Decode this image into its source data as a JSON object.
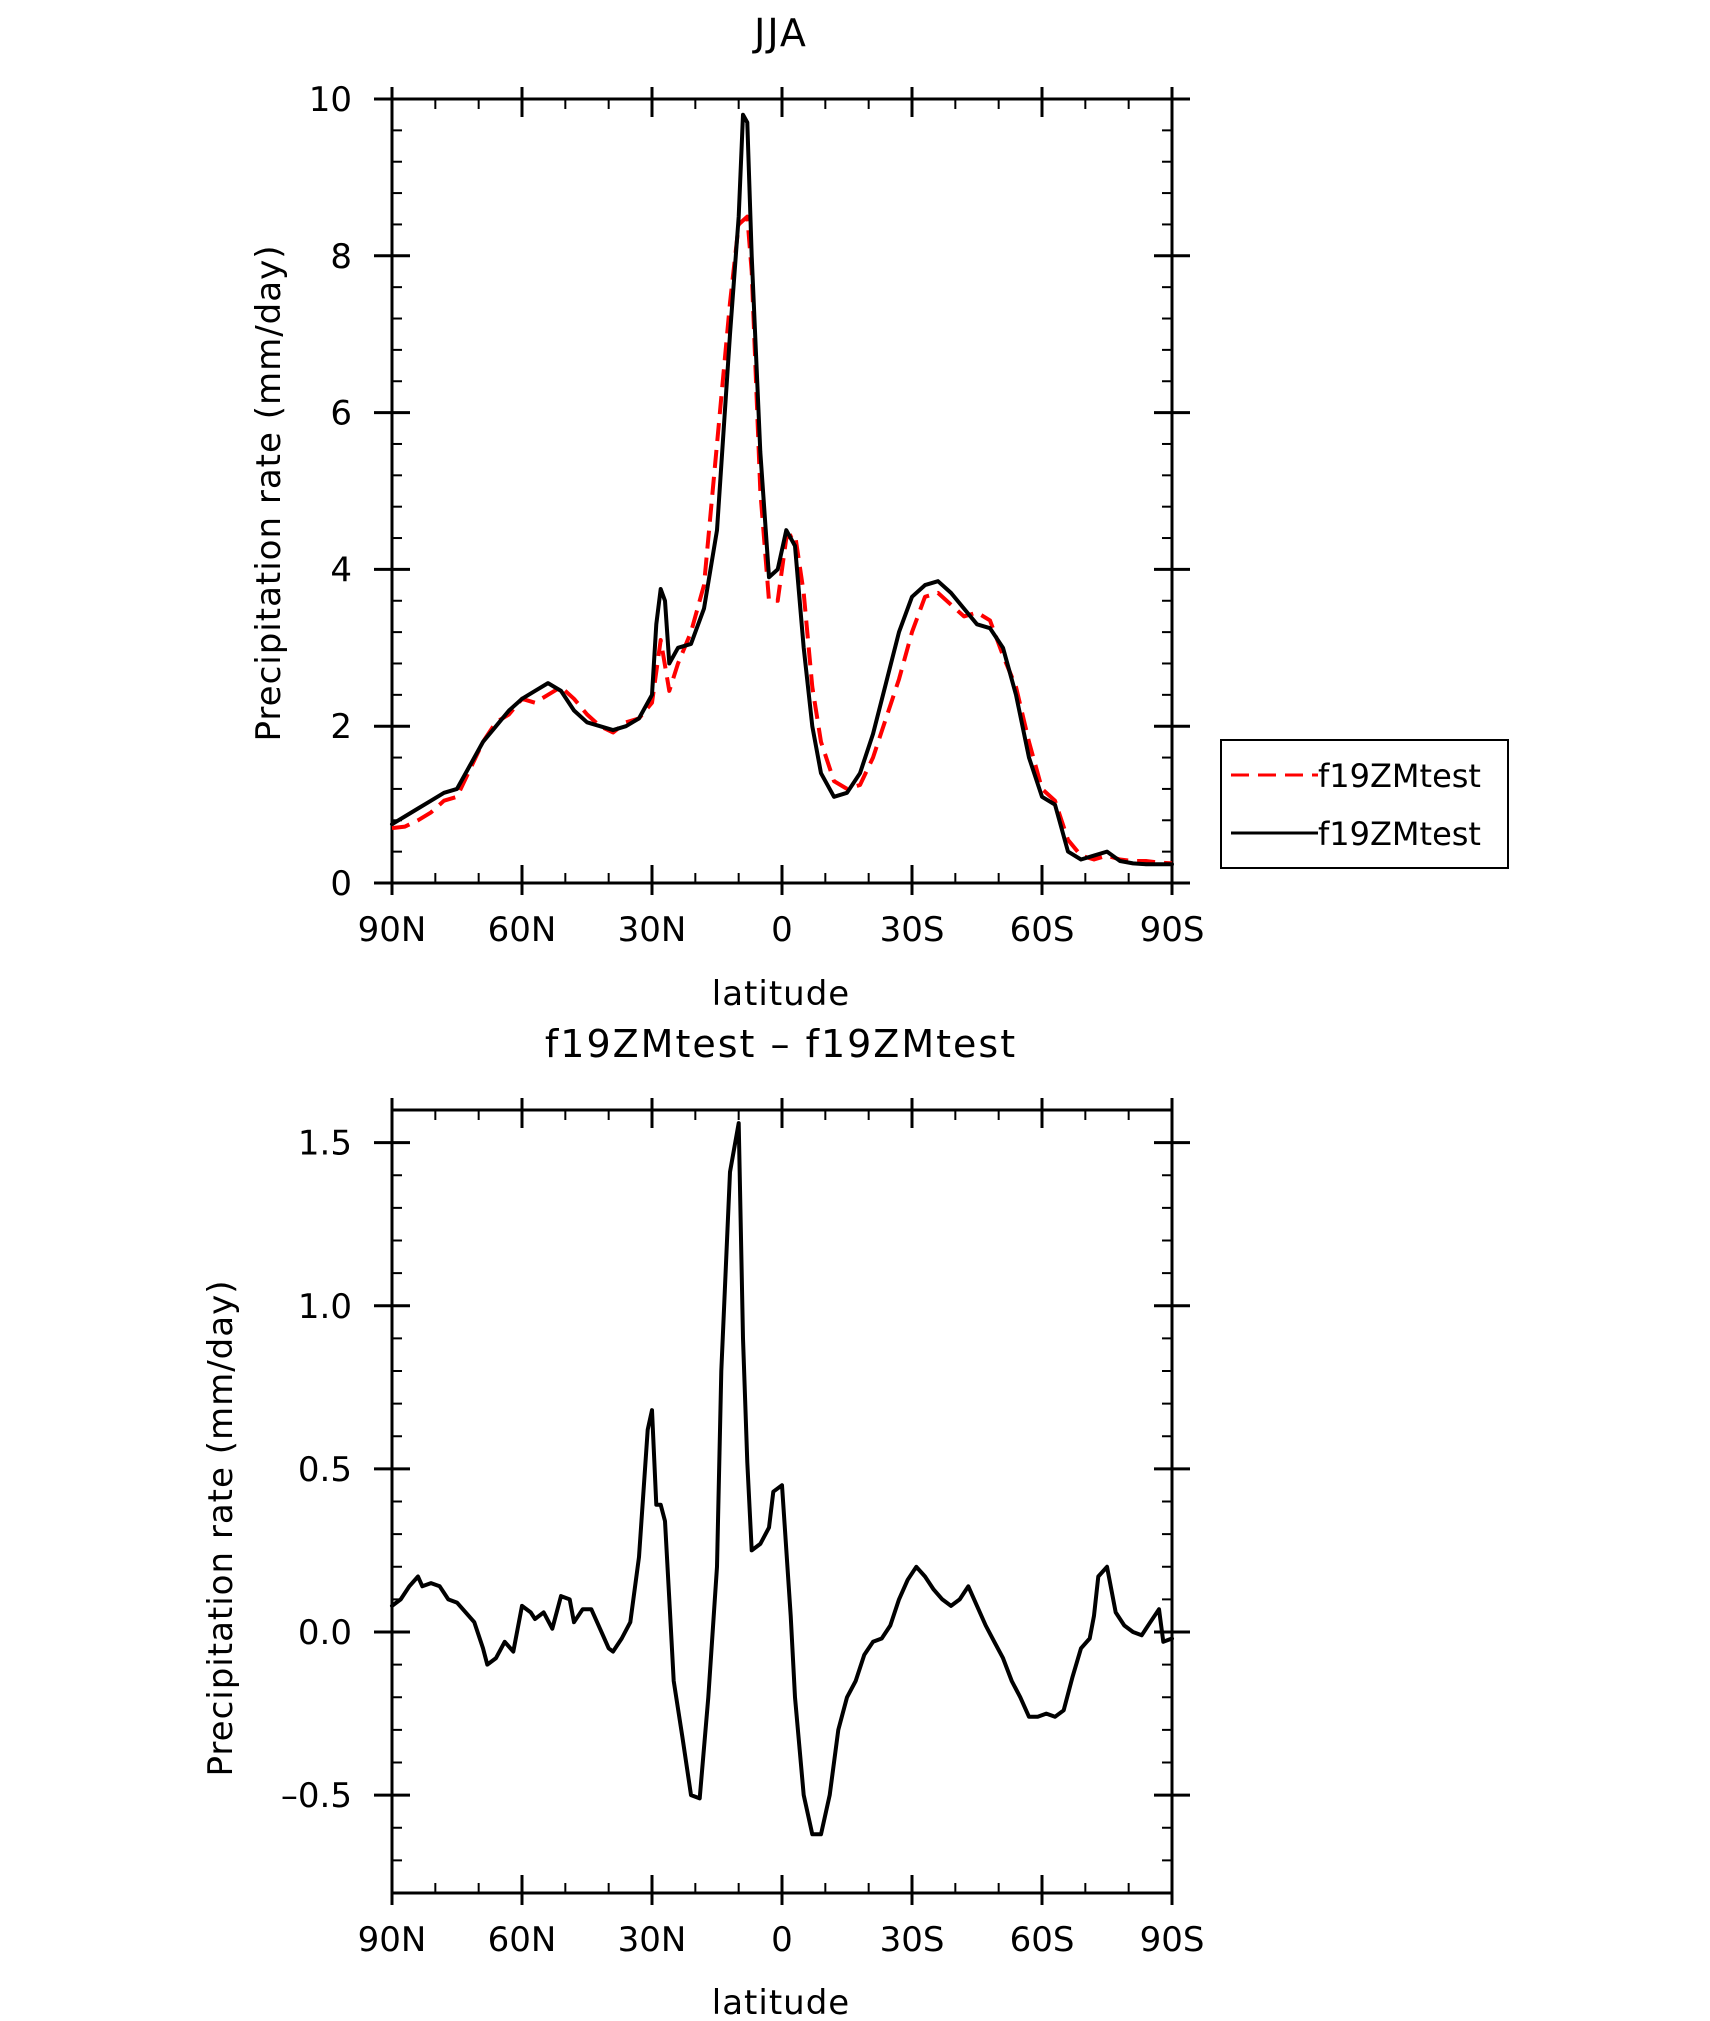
{
  "chart_data": [
    {
      "type": "line",
      "title": "JJA",
      "xlabel": "latitude",
      "ylabel": "Precipitation rate (mm/day)",
      "xlim": [
        90,
        -90
      ],
      "ylim": [
        0,
        10
      ],
      "xticks": [
        90,
        60,
        30,
        0,
        -30,
        -60,
        -90
      ],
      "xtick_labels": [
        "90N",
        "60N",
        "30N",
        "0",
        "30S",
        "60S",
        "90S"
      ],
      "yticks": [
        0,
        2,
        4,
        6,
        8,
        10
      ],
      "ytick_labels": [
        "0",
        "2",
        "4",
        "6",
        "8",
        "10"
      ],
      "legend": "right",
      "series": [
        {
          "name": "f19ZMtest",
          "color": "#ff0000",
          "dash": "dashed",
          "x": [
            90,
            87,
            84,
            81,
            78,
            75,
            72,
            69,
            66,
            63,
            60,
            57,
            54,
            51,
            48,
            45,
            42,
            39,
            36,
            33,
            30,
            28,
            26,
            24,
            21,
            18,
            15,
            12,
            10,
            8,
            7,
            5,
            3,
            1,
            -1,
            -3,
            -5,
            -7,
            -9,
            -12,
            -15,
            -18,
            -21,
            -24,
            -27,
            -30,
            -33,
            -36,
            -39,
            -42,
            -45,
            -48,
            -51,
            -54,
            -57,
            -60,
            -63,
            -66,
            -69,
            -72,
            -75,
            -78,
            -81,
            -84,
            -87,
            -90
          ],
          "y": [
            0.7,
            0.72,
            0.8,
            0.9,
            1.05,
            1.1,
            1.45,
            1.8,
            2.05,
            2.15,
            2.35,
            2.3,
            2.4,
            2.5,
            2.35,
            2.15,
            2.0,
            1.92,
            2.05,
            2.1,
            2.3,
            3.1,
            2.45,
            2.8,
            3.2,
            3.8,
            5.6,
            7.4,
            8.4,
            8.5,
            7.8,
            5.0,
            3.6,
            3.6,
            4.4,
            4.45,
            3.7,
            2.5,
            1.8,
            1.3,
            1.2,
            1.25,
            1.6,
            2.1,
            2.6,
            3.2,
            3.65,
            3.7,
            3.55,
            3.4,
            3.45,
            3.35,
            2.9,
            2.5,
            1.8,
            1.2,
            1.05,
            0.55,
            0.35,
            0.3,
            0.35,
            0.3,
            0.28,
            0.28,
            0.26,
            0.25
          ]
        },
        {
          "name": "f19ZMtest",
          "color": "#000000",
          "dash": "solid",
          "x": [
            90,
            87,
            84,
            81,
            78,
            75,
            72,
            69,
            66,
            63,
            60,
            57,
            54,
            51,
            48,
            45,
            42,
            39,
            36,
            33,
            30,
            29,
            28,
            27,
            26,
            24,
            21,
            18,
            15,
            12,
            10,
            9,
            8,
            7,
            5,
            3,
            1,
            -1,
            -3,
            -5,
            -7,
            -9,
            -12,
            -15,
            -18,
            -21,
            -24,
            -27,
            -30,
            -33,
            -36,
            -39,
            -42,
            -45,
            -48,
            -51,
            -54,
            -57,
            -60,
            -63,
            -66,
            -69,
            -72,
            -75,
            -78,
            -81,
            -84,
            -87,
            -90
          ],
          "y": [
            0.75,
            0.85,
            0.95,
            1.05,
            1.15,
            1.2,
            1.5,
            1.8,
            2.0,
            2.2,
            2.35,
            2.45,
            2.55,
            2.45,
            2.2,
            2.05,
            2.0,
            1.95,
            2.0,
            2.1,
            2.4,
            3.3,
            3.75,
            3.6,
            2.8,
            3.0,
            3.05,
            3.5,
            4.5,
            7.0,
            8.5,
            9.8,
            9.7,
            8.0,
            5.5,
            3.9,
            4.0,
            4.5,
            4.3,
            3.0,
            2.0,
            1.4,
            1.1,
            1.15,
            1.4,
            1.9,
            2.55,
            3.2,
            3.65,
            3.8,
            3.85,
            3.7,
            3.5,
            3.3,
            3.25,
            3.0,
            2.4,
            1.6,
            1.1,
            1.0,
            0.4,
            0.3,
            0.35,
            0.4,
            0.28,
            0.25,
            0.24,
            0.24,
            0.24
          ]
        }
      ]
    },
    {
      "type": "line",
      "title": "f19ZMtest – f19ZMtest",
      "xlabel": "latitude",
      "ylabel": "Precipitation rate (mm/day)",
      "xlim": [
        90,
        -90
      ],
      "ylim": [
        -0.8,
        1.6
      ],
      "xticks": [
        90,
        60,
        30,
        0,
        -30,
        -60,
        -90
      ],
      "xtick_labels": [
        "90N",
        "60N",
        "30N",
        "0",
        "30S",
        "60S",
        "90S"
      ],
      "yticks": [
        -0.5,
        0.0,
        0.5,
        1.0,
        1.5
      ],
      "ytick_labels": [
        "–0.5",
        "0.0",
        "0.5",
        "1.0",
        "1.5"
      ],
      "series": [
        {
          "color": "#000000",
          "dash": "solid",
          "x": [
            90,
            88,
            86,
            84,
            83,
            81,
            79,
            77,
            75,
            73,
            71,
            69,
            68,
            66,
            64,
            62,
            60,
            58,
            57,
            55,
            53,
            51,
            49,
            48,
            46,
            44,
            42,
            40,
            39,
            37,
            35,
            33,
            31,
            30,
            29,
            28,
            27,
            26,
            25,
            23,
            21,
            19,
            17,
            15,
            14,
            12,
            10,
            9,
            8,
            7,
            5,
            3,
            2,
            0,
            -2,
            -3,
            -5,
            -7,
            -9,
            -11,
            -13,
            -15,
            -17,
            -19,
            -21,
            -23,
            -25,
            -27,
            -29,
            -31,
            -33,
            -35,
            -37,
            -39,
            -41,
            -43,
            -45,
            -47,
            -49,
            -51,
            -53,
            -55,
            -57,
            -59,
            -61,
            -63,
            -65,
            -67,
            -69,
            -71,
            -72,
            -73,
            -75,
            -77,
            -79,
            -81,
            -83,
            -85,
            -87,
            -88,
            -90
          ],
          "y": [
            0.08,
            0.1,
            0.14,
            0.17,
            0.14,
            0.15,
            0.14,
            0.1,
            0.09,
            0.06,
            0.03,
            -0.05,
            -0.1,
            -0.08,
            -0.03,
            -0.06,
            0.08,
            0.06,
            0.04,
            0.06,
            0.01,
            0.11,
            0.1,
            0.03,
            0.07,
            0.07,
            0.01,
            -0.05,
            -0.06,
            -0.02,
            0.03,
            0.23,
            0.62,
            0.68,
            0.39,
            0.39,
            0.34,
            0.1,
            -0.15,
            -0.32,
            -0.5,
            -0.51,
            -0.2,
            0.2,
            0.8,
            1.41,
            1.56,
            0.9,
            0.52,
            0.25,
            0.27,
            0.32,
            0.43,
            0.45,
            0.05,
            -0.2,
            -0.5,
            -0.62,
            -0.62,
            -0.5,
            -0.3,
            -0.2,
            -0.15,
            -0.07,
            -0.03,
            -0.02,
            0.02,
            0.1,
            0.16,
            0.2,
            0.17,
            0.13,
            0.1,
            0.08,
            0.1,
            0.14,
            0.08,
            0.02,
            -0.03,
            -0.08,
            -0.15,
            -0.2,
            -0.26,
            -0.26,
            -0.25,
            -0.26,
            -0.24,
            -0.14,
            -0.05,
            -0.02,
            0.05,
            0.17,
            0.2,
            0.06,
            0.02,
            0.0,
            -0.01,
            0.03,
            0.07,
            -0.03,
            -0.02
          ]
        }
      ]
    }
  ]
}
